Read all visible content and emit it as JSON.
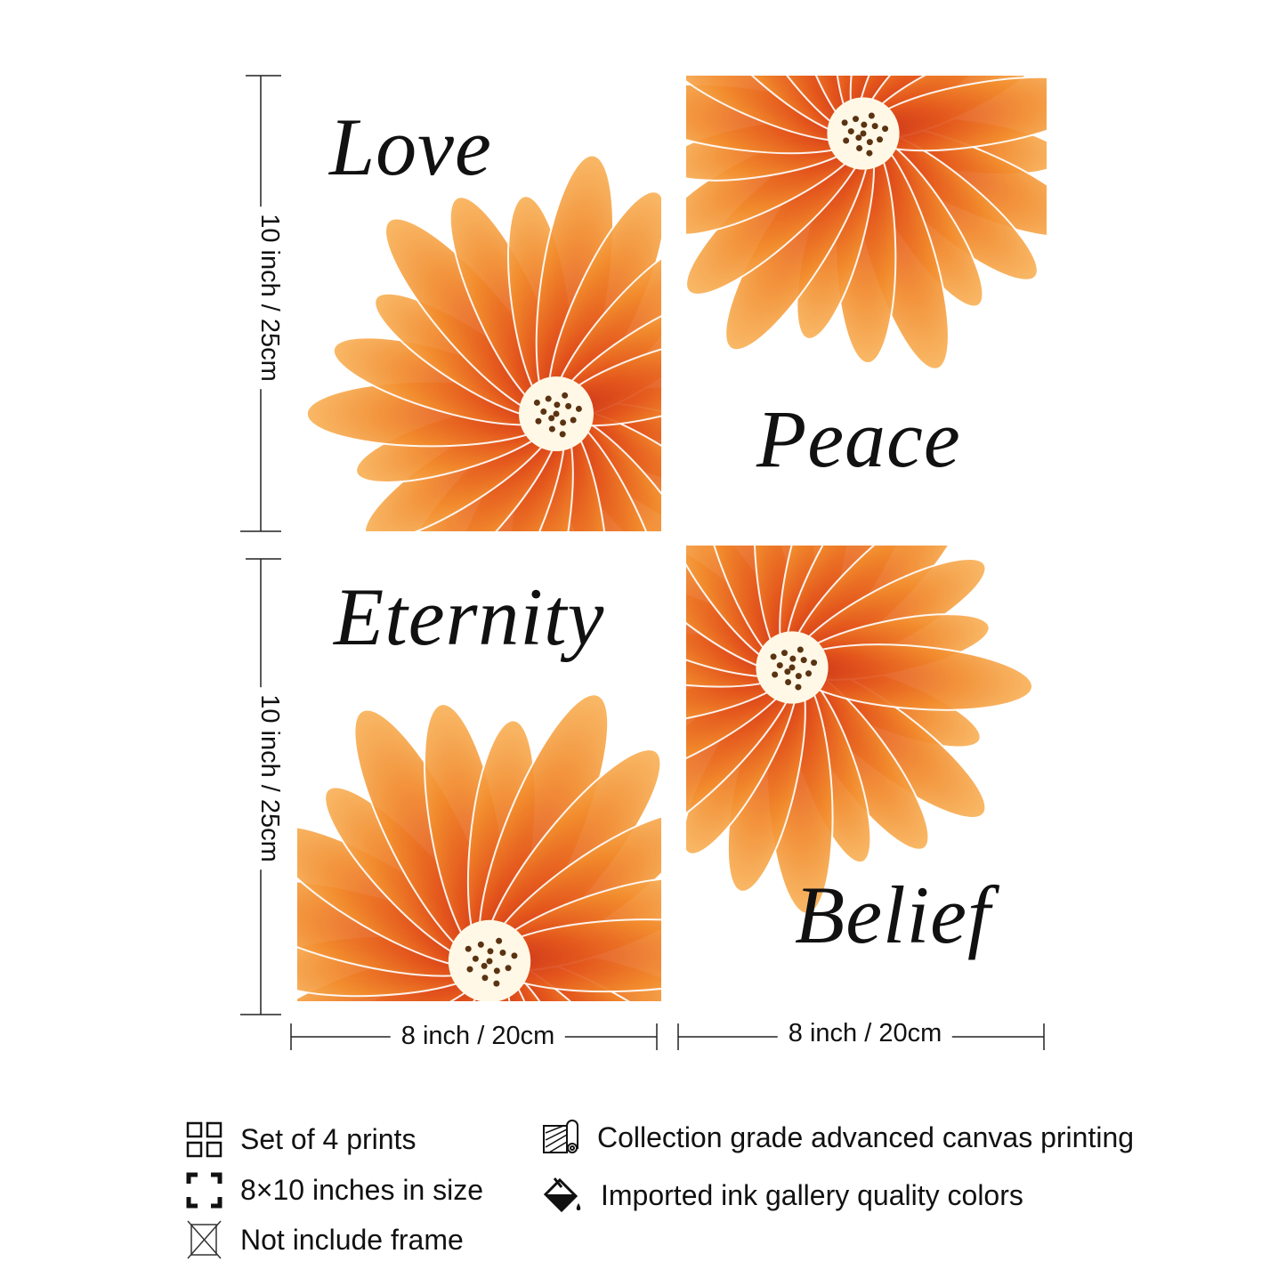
{
  "prints": [
    {
      "word": "Love"
    },
    {
      "word": "Peace"
    },
    {
      "word": "Eternity"
    },
    {
      "word": "Belief"
    }
  ],
  "dimensions": {
    "height_top": "10 inch / 25cm",
    "height_bottom": "10 inch / 25cm",
    "width_left": "8 inch / 20cm",
    "width_right": "8 inch / 20cm"
  },
  "features": [
    {
      "icon": "grid-icon",
      "label": "Set of 4 prints"
    },
    {
      "icon": "frame-corners-icon",
      "label": "8×10 inches in size"
    },
    {
      "icon": "no-frame-icon",
      "label": "Not include frame"
    },
    {
      "icon": "canvas-roll-icon",
      "label": "Collection grade advanced canvas printing"
    },
    {
      "icon": "paint-bucket-icon",
      "label": "Imported ink gallery quality colors"
    }
  ],
  "colors": {
    "petal_light": "#f9b35a",
    "petal_mid": "#f08a2a",
    "petal_dark": "#d9401a",
    "center": "#fff8e6"
  }
}
